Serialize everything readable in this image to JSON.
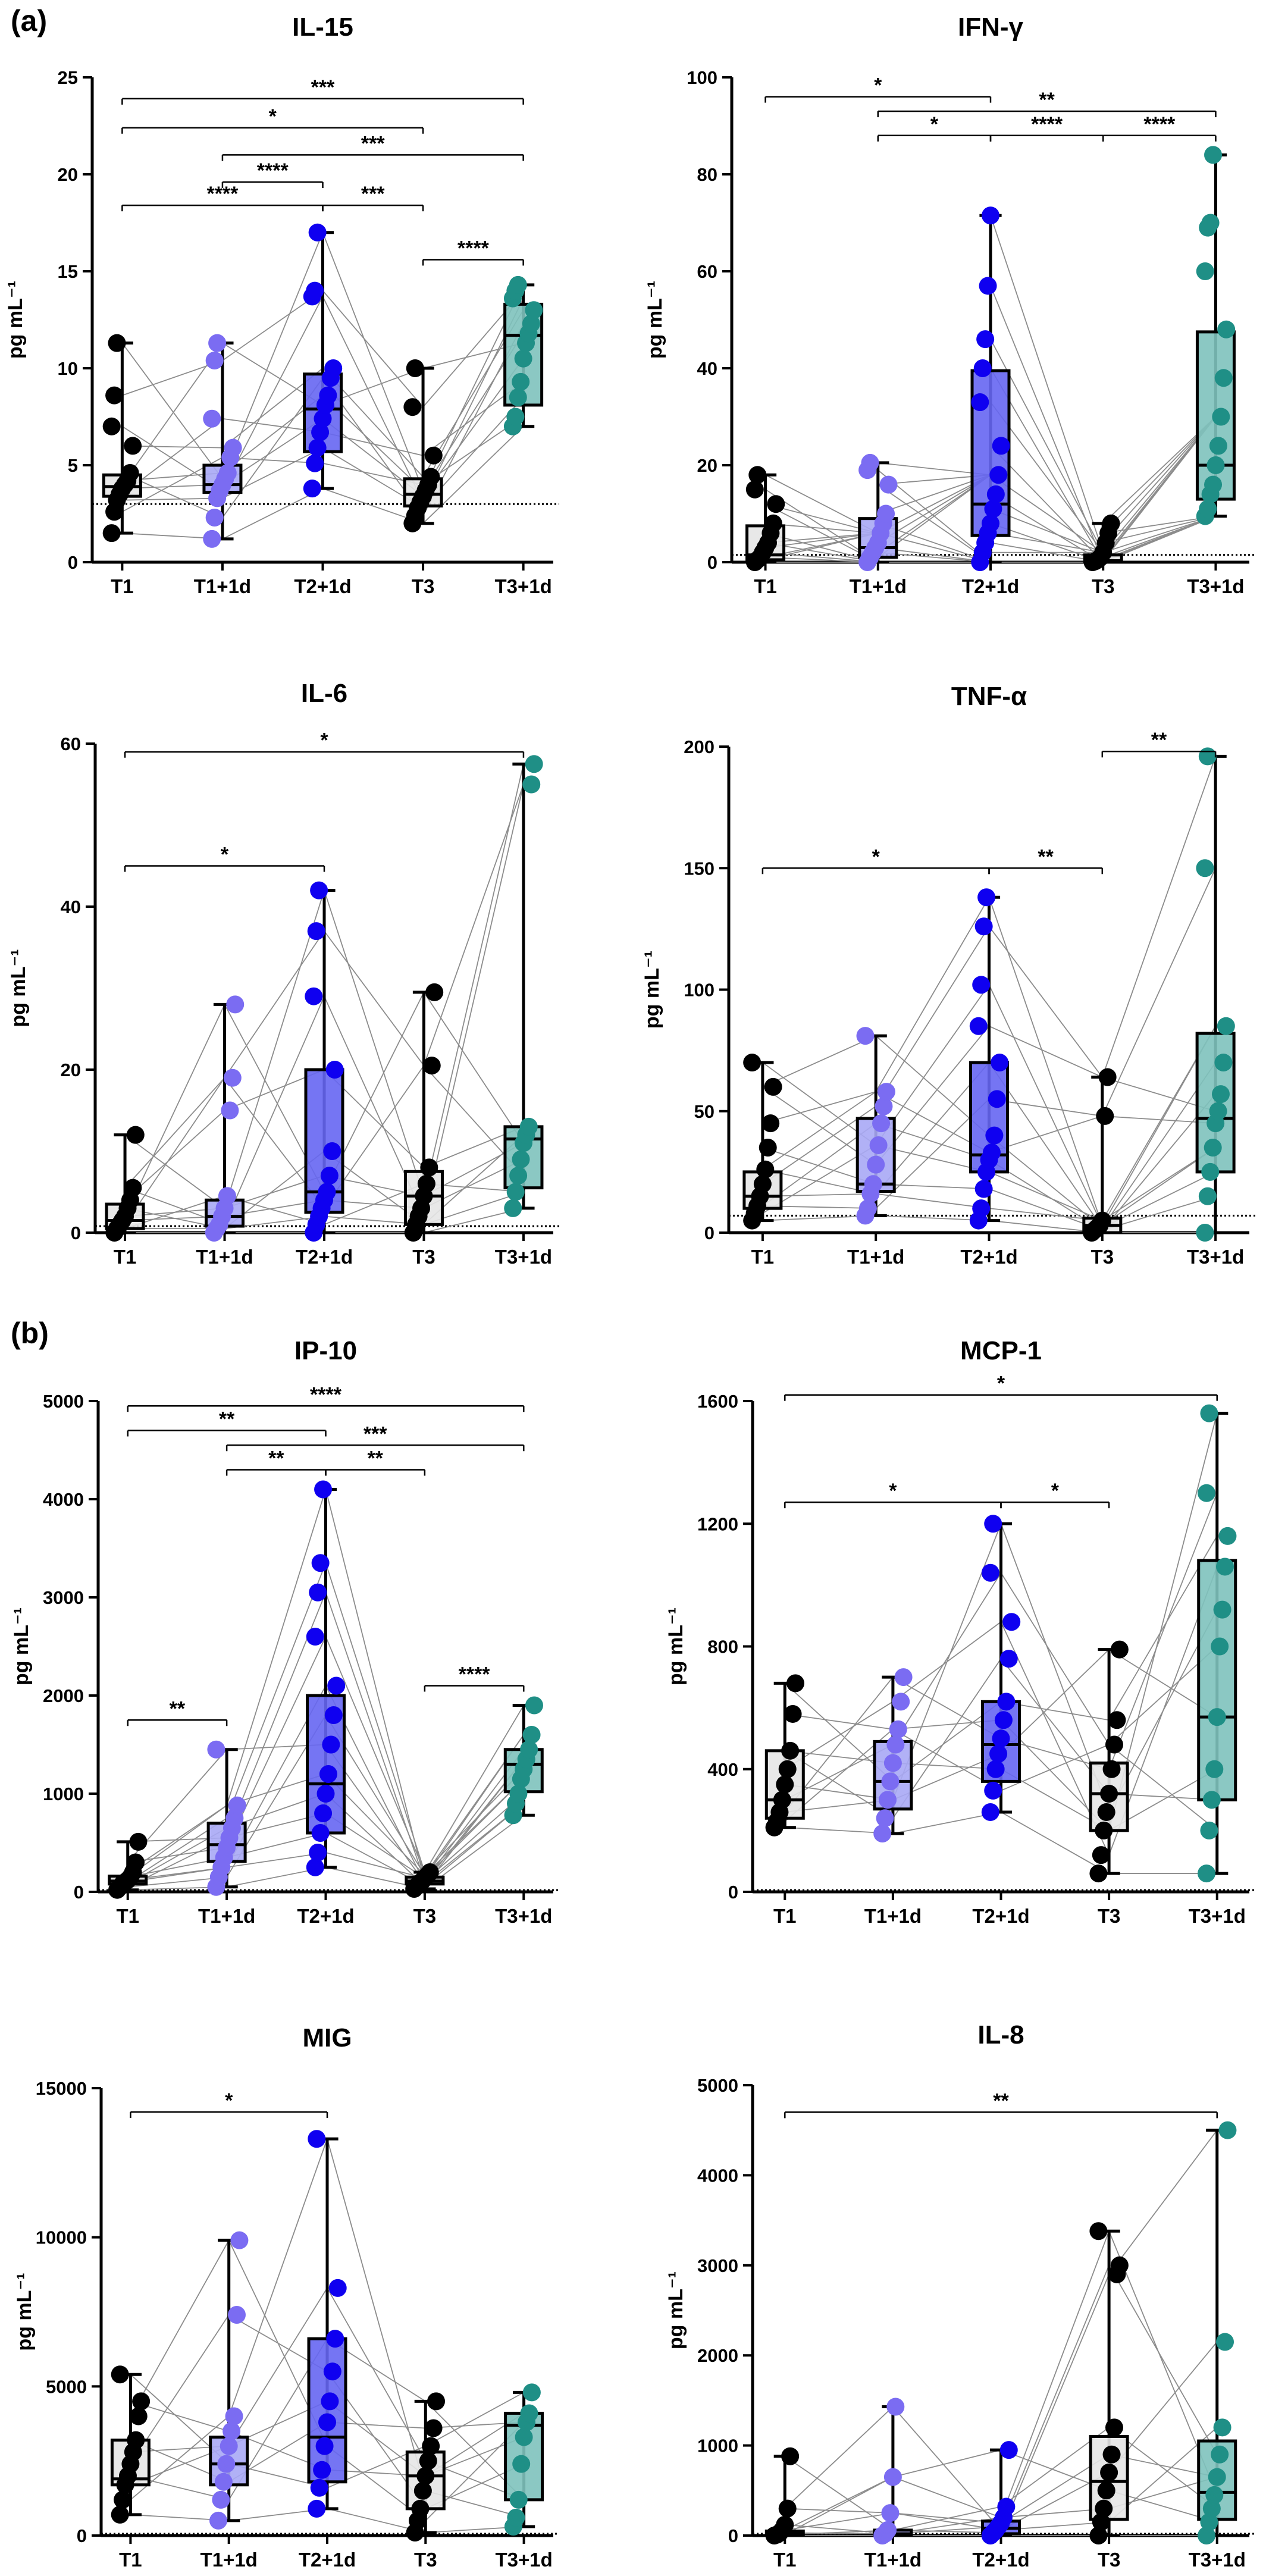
{
  "panel_labels": [
    "(a)",
    "(b)"
  ],
  "colors": {
    "T1": "#e6e6e6",
    "T1+1d": "#a8a8f5",
    "T2+1d": "#6666f2",
    "T3": "#e6e6e6",
    "T3+1d": "#7ec2bd"
  },
  "point_colors": {
    "T1": "#000000",
    "T1+1d": "#7b6cf2",
    "T2+1d": "#0f00f0",
    "T3": "#000000",
    "T3+1d": "#1f8f86"
  },
  "chart_data": [
    {
      "type": "box",
      "title": "IL-15",
      "ylabel": "pg mL⁻¹",
      "categories": [
        "T1",
        "T1+1d",
        "T2+1d",
        "T3",
        "T3+1d"
      ],
      "ylim": [
        0,
        25
      ],
      "yticks": [
        0,
        5,
        10,
        15,
        20,
        25
      ],
      "baseline": 3,
      "boxes": [
        {
          "min": 1.5,
          "q1": 3.4,
          "median": 3.9,
          "q3": 4.5,
          "max": 11.3,
          "points": [
            1.5,
            2.6,
            3.2,
            3.5,
            3.8,
            4.0,
            4.2,
            4.6,
            6.0,
            7.0,
            8.6,
            11.3
          ]
        },
        {
          "min": 1.2,
          "q1": 3.6,
          "median": 4.0,
          "q3": 5.0,
          "max": 11.3,
          "points": [
            1.2,
            2.3,
            3.3,
            3.7,
            4.0,
            4.3,
            4.6,
            5.4,
            5.9,
            7.4,
            10.4,
            11.3
          ]
        },
        {
          "min": 3.8,
          "q1": 5.7,
          "median": 7.9,
          "q3": 9.7,
          "max": 17.0,
          "points": [
            3.8,
            5.1,
            5.9,
            6.7,
            7.4,
            8.1,
            8.6,
            9.5,
            10.0,
            13.7,
            14.0,
            17.0
          ]
        },
        {
          "min": 2.0,
          "q1": 2.9,
          "median": 3.5,
          "q3": 4.3,
          "max": 10.0,
          "points": [
            2.0,
            2.4,
            2.8,
            3.1,
            3.4,
            3.7,
            4.0,
            4.4,
            5.5,
            8.0,
            10.0
          ]
        },
        {
          "min": 7.0,
          "q1": 8.1,
          "median": 11.7,
          "q3": 13.3,
          "max": 14.3,
          "points": [
            7.0,
            7.5,
            8.5,
            9.3,
            10.5,
            11.3,
            11.8,
            12.3,
            13.0,
            13.6,
            14.0,
            14.3
          ]
        }
      ],
      "brackets": [
        {
          "from": 0,
          "to": 4,
          "y": 23.9,
          "label": "***"
        },
        {
          "from": 0,
          "to": 3,
          "y": 22.4,
          "label": "*"
        },
        {
          "from": 1,
          "to": 4,
          "y": 21.0,
          "label": "***"
        },
        {
          "from": 1,
          "to": 2,
          "y": 19.6,
          "label": "****"
        },
        {
          "from": 0,
          "to": 2,
          "y": 18.4,
          "label": "****"
        },
        {
          "from": 2,
          "to": 3,
          "y": 18.4,
          "label": "***"
        },
        {
          "from": 3,
          "to": 4,
          "y": 15.6,
          "label": "****"
        }
      ]
    },
    {
      "type": "box",
      "title": "IFN-γ",
      "ylabel": "pg mL⁻¹",
      "categories": [
        "T1",
        "T1+1d",
        "T2+1d",
        "T3",
        "T3+1d"
      ],
      "ylim": [
        0,
        100
      ],
      "yticks": [
        0,
        20,
        40,
        60,
        80,
        100
      ],
      "baseline": 1.5,
      "boxes": [
        {
          "min": 0,
          "q1": 0.5,
          "median": 1.5,
          "q3": 7.5,
          "max": 18,
          "points": [
            0,
            0.5,
            1,
            2,
            3,
            4,
            6,
            8,
            12,
            15,
            18
          ]
        },
        {
          "min": 0,
          "q1": 1,
          "median": 3,
          "q3": 9,
          "max": 20.5,
          "points": [
            0,
            1,
            2,
            3,
            4,
            6,
            8,
            10,
            16,
            19,
            20.5
          ]
        },
        {
          "min": 0,
          "q1": 5.5,
          "median": 12,
          "q3": 39.5,
          "max": 71.5,
          "points": [
            0,
            2,
            4,
            6,
            8,
            11,
            14,
            18,
            24,
            33,
            40,
            46,
            57,
            71.5
          ]
        },
        {
          "min": 0,
          "q1": 0,
          "median": 0.3,
          "q3": 1.5,
          "max": 8,
          "points": [
            0,
            0.2,
            0.5,
            1,
            2,
            4,
            6,
            8
          ]
        },
        {
          "min": 9.5,
          "q1": 13,
          "median": 20,
          "q3": 47.5,
          "max": 84,
          "points": [
            9.5,
            11,
            14,
            16,
            20,
            24,
            30,
            38,
            48,
            60,
            69,
            70,
            84
          ]
        }
      ],
      "brackets": [
        {
          "from": 0,
          "to": 2,
          "y": 96,
          "label": "*"
        },
        {
          "from": 1,
          "to": 4,
          "y": 93,
          "label": "**"
        },
        {
          "from": 1,
          "to": 2,
          "y": 88,
          "label": "*"
        },
        {
          "from": 2,
          "to": 3,
          "y": 88,
          "label": "****"
        },
        {
          "from": 3,
          "to": 4,
          "y": 88,
          "label": "****"
        }
      ]
    },
    {
      "type": "box",
      "title": "IL-6",
      "ylabel": "pg mL⁻¹",
      "categories": [
        "T1",
        "T1+1d",
        "T2+1d",
        "T3",
        "T3+1d"
      ],
      "ylim": [
        0,
        60
      ],
      "yticks": [
        0,
        20,
        40,
        60
      ],
      "baseline": 0.8,
      "boxes": [
        {
          "min": 0,
          "q1": 0.5,
          "median": 1.5,
          "q3": 3.5,
          "max": 12,
          "points": [
            0,
            0.5,
            1,
            1.5,
            2,
            3,
            4,
            5.5,
            12
          ]
        },
        {
          "min": 0,
          "q1": 0.8,
          "median": 2,
          "q3": 4,
          "max": 28,
          "points": [
            0,
            0.5,
            1,
            2,
            3,
            4.5,
            15,
            19,
            28
          ]
        },
        {
          "min": 0,
          "q1": 2.5,
          "median": 5,
          "q3": 20,
          "max": 42,
          "points": [
            0,
            1,
            2,
            3,
            4,
            5,
            7,
            10,
            20,
            29,
            37,
            42
          ]
        },
        {
          "min": 0,
          "q1": 1,
          "median": 4.5,
          "q3": 7.5,
          "max": 29.5,
          "points": [
            0,
            1,
            2,
            3,
            4.5,
            6,
            8,
            20.5,
            29.5
          ]
        },
        {
          "min": 3,
          "q1": 5.5,
          "median": 11.5,
          "q3": 13,
          "max": 57.5,
          "points": [
            3,
            5,
            7,
            9,
            11,
            12,
            13,
            55,
            57.5
          ]
        }
      ],
      "brackets": [
        {
          "from": 0,
          "to": 4,
          "y": 59,
          "label": "*"
        },
        {
          "from": 0,
          "to": 2,
          "y": 45,
          "label": "*"
        }
      ]
    },
    {
      "type": "box",
      "title": "TNF-α",
      "ylabel": "pg mL⁻¹",
      "categories": [
        "T1",
        "T1+1d",
        "T2+1d",
        "T3",
        "T3+1d"
      ],
      "ylim": [
        0,
        200
      ],
      "yticks": [
        0,
        50,
        100,
        150,
        200
      ],
      "baseline": 7,
      "boxes": [
        {
          "min": 5,
          "q1": 10,
          "median": 15,
          "q3": 25,
          "max": 70,
          "points": [
            5,
            8,
            11,
            15,
            20,
            26,
            35,
            45,
            60,
            70
          ]
        },
        {
          "min": 7,
          "q1": 17,
          "median": 20,
          "q3": 47,
          "max": 81,
          "points": [
            7,
            10,
            16,
            20,
            28,
            36,
            45,
            52,
            58,
            81
          ]
        },
        {
          "min": 5,
          "q1": 25,
          "median": 32,
          "q3": 70,
          "max": 138,
          "points": [
            5,
            10,
            18,
            25,
            30,
            33,
            40,
            55,
            70,
            85,
            102,
            126,
            138
          ]
        },
        {
          "min": 0,
          "q1": 0,
          "median": 3,
          "q3": 6,
          "max": 64,
          "points": [
            0,
            1,
            2,
            3,
            5,
            48,
            64
          ]
        },
        {
          "min": 0,
          "q1": 25,
          "median": 47,
          "q3": 82,
          "max": 196,
          "points": [
            0,
            15,
            25,
            35,
            45,
            50,
            57,
            70,
            85,
            150,
            196
          ]
        }
      ],
      "brackets": [
        {
          "from": 0,
          "to": 2,
          "y": 150,
          "label": "*"
        },
        {
          "from": 2,
          "to": 3,
          "y": 150,
          "label": "**"
        },
        {
          "from": 3,
          "to": 4,
          "y": 198,
          "label": "**"
        }
      ]
    },
    {
      "type": "box",
      "title": "IP-10",
      "ylabel": "pg mL⁻¹",
      "categories": [
        "T1",
        "T1+1d",
        "T2+1d",
        "T3",
        "T3+1d"
      ],
      "ylim": [
        0,
        5000
      ],
      "yticks": [
        0,
        1000,
        2000,
        3000,
        4000,
        5000
      ],
      "baseline": 0,
      "boxes": [
        {
          "min": 20,
          "q1": 80,
          "median": 110,
          "q3": 160,
          "max": 510,
          "points": [
            20,
            50,
            80,
            100,
            120,
            150,
            200,
            300,
            510
          ]
        },
        {
          "min": 50,
          "q1": 310,
          "median": 480,
          "q3": 700,
          "max": 1450,
          "points": [
            50,
            150,
            250,
            350,
            450,
            550,
            650,
            750,
            880,
            1450
          ]
        },
        {
          "min": 250,
          "q1": 600,
          "median": 1100,
          "q3": 2000,
          "max": 4100,
          "points": [
            250,
            400,
            600,
            800,
            1000,
            1200,
            1500,
            1800,
            2100,
            2600,
            3050,
            3350,
            4100
          ]
        },
        {
          "min": 30,
          "q1": 80,
          "median": 110,
          "q3": 150,
          "max": 200,
          "points": [
            30,
            60,
            90,
            110,
            140,
            170,
            200
          ]
        },
        {
          "min": 780,
          "q1": 1020,
          "median": 1300,
          "q3": 1450,
          "max": 1900,
          "points": [
            780,
            900,
            1000,
            1150,
            1250,
            1350,
            1450,
            1600,
            1900
          ]
        }
      ],
      "brackets": [
        {
          "from": 0,
          "to": 4,
          "y": 4950,
          "label": "****"
        },
        {
          "from": 0,
          "to": 2,
          "y": 4700,
          "label": "**"
        },
        {
          "from": 1,
          "to": 4,
          "y": 4550,
          "label": "***"
        },
        {
          "from": 1,
          "to": 2,
          "y": 4300,
          "label": "**"
        },
        {
          "from": 2,
          "to": 3,
          "y": 4300,
          "label": "**"
        },
        {
          "from": 0,
          "to": 1,
          "y": 1750,
          "label": "**"
        },
        {
          "from": 3,
          "to": 4,
          "y": 2100,
          "label": "****"
        }
      ]
    },
    {
      "type": "box",
      "title": "MCP-1",
      "ylabel": "pg mL⁻¹",
      "categories": [
        "T1",
        "T1+1d",
        "T2+1d",
        "T3",
        "T3+1d"
      ],
      "ylim": [
        0,
        1600
      ],
      "yticks": [
        0,
        400,
        800,
        1200,
        1600
      ],
      "baseline": 0,
      "boxes": [
        {
          "min": 210,
          "q1": 240,
          "median": 300,
          "q3": 460,
          "max": 680,
          "points": [
            210,
            230,
            260,
            300,
            350,
            400,
            460,
            580,
            680
          ]
        },
        {
          "min": 190,
          "q1": 270,
          "median": 360,
          "q3": 490,
          "max": 700,
          "points": [
            190,
            240,
            300,
            360,
            420,
            480,
            530,
            620,
            700
          ]
        },
        {
          "min": 260,
          "q1": 360,
          "median": 480,
          "q3": 620,
          "max": 1200,
          "points": [
            260,
            330,
            400,
            450,
            500,
            560,
            620,
            760,
            880,
            1040,
            1200
          ]
        },
        {
          "min": 60,
          "q1": 200,
          "median": 320,
          "q3": 420,
          "max": 790,
          "points": [
            60,
            120,
            200,
            260,
            320,
            400,
            480,
            560,
            790
          ]
        },
        {
          "min": 60,
          "q1": 300,
          "median": 570,
          "q3": 1080,
          "max": 1560,
          "points": [
            60,
            200,
            300,
            400,
            570,
            800,
            920,
            1060,
            1160,
            1300,
            1560
          ]
        }
      ],
      "brackets": [
        {
          "from": 0,
          "to": 4,
          "y": 1620,
          "label": "*"
        },
        {
          "from": 0,
          "to": 2,
          "y": 1270,
          "label": "*"
        },
        {
          "from": 2,
          "to": 3,
          "y": 1270,
          "label": "*"
        }
      ]
    },
    {
      "type": "box",
      "title": "MIG",
      "ylabel": "pg mL⁻¹",
      "categories": [
        "T1",
        "T1+1d",
        "T2+1d",
        "T3",
        "T3+1d"
      ],
      "ylim": [
        0,
        15000
      ],
      "yticks": [
        0,
        5000,
        10000,
        15000
      ],
      "baseline": 0,
      "boxes": [
        {
          "min": 700,
          "q1": 1700,
          "median": 1900,
          "q3": 3200,
          "max": 5400,
          "points": [
            700,
            1200,
            1700,
            2000,
            2400,
            2800,
            3200,
            4000,
            4500,
            5400
          ]
        },
        {
          "min": 500,
          "q1": 1700,
          "median": 2400,
          "q3": 3300,
          "max": 9900,
          "points": [
            500,
            1200,
            1800,
            2400,
            3000,
            3500,
            4000,
            7400,
            9900
          ]
        },
        {
          "min": 900,
          "q1": 1800,
          "median": 3300,
          "q3": 6600,
          "max": 13300,
          "points": [
            900,
            1600,
            2200,
            3000,
            3800,
            4500,
            5500,
            6600,
            8300,
            13300
          ]
        },
        {
          "min": 100,
          "q1": 900,
          "median": 2000,
          "q3": 2800,
          "max": 4500,
          "points": [
            100,
            500,
            900,
            1500,
            2000,
            2500,
            3000,
            3600,
            4500
          ]
        },
        {
          "min": 300,
          "q1": 1200,
          "median": 3700,
          "q3": 4100,
          "max": 4800,
          "points": [
            300,
            600,
            1200,
            2400,
            3300,
            3800,
            4100,
            4800
          ]
        }
      ],
      "brackets": [
        {
          "from": 0,
          "to": 2,
          "y": 14200,
          "label": "*"
        }
      ]
    },
    {
      "type": "box",
      "title": "IL-8",
      "ylabel": "pg mL⁻¹",
      "categories": [
        "T1",
        "T1+1d",
        "T2+1d",
        "T3",
        "T3+1d"
      ],
      "ylim": [
        0,
        5000
      ],
      "yticks": [
        0,
        1000,
        2000,
        3000,
        4000,
        5000
      ],
      "baseline": 0,
      "boxes": [
        {
          "min": 0,
          "q1": 0,
          "median": 20,
          "q3": 50,
          "max": 880,
          "points": [
            0,
            10,
            30,
            60,
            120,
            300,
            880
          ]
        },
        {
          "min": 0,
          "q1": 0,
          "median": 20,
          "q3": 60,
          "max": 1430,
          "points": [
            0,
            20,
            60,
            250,
            650,
            1430
          ]
        },
        {
          "min": 0,
          "q1": 20,
          "median": 80,
          "q3": 160,
          "max": 950,
          "points": [
            0,
            30,
            60,
            100,
            140,
            200,
            320,
            950
          ]
        },
        {
          "min": 0,
          "q1": 180,
          "median": 600,
          "q3": 1100,
          "max": 3380,
          "points": [
            0,
            150,
            300,
            500,
            700,
            900,
            1200,
            2900,
            3000,
            3380
          ]
        },
        {
          "min": 0,
          "q1": 180,
          "median": 480,
          "q3": 1050,
          "max": 4500,
          "points": [
            0,
            150,
            300,
            450,
            650,
            900,
            1200,
            2150,
            4500
          ]
        }
      ],
      "brackets": [
        {
          "from": 0,
          "to": 4,
          "y": 4700,
          "label": "**"
        }
      ]
    }
  ]
}
